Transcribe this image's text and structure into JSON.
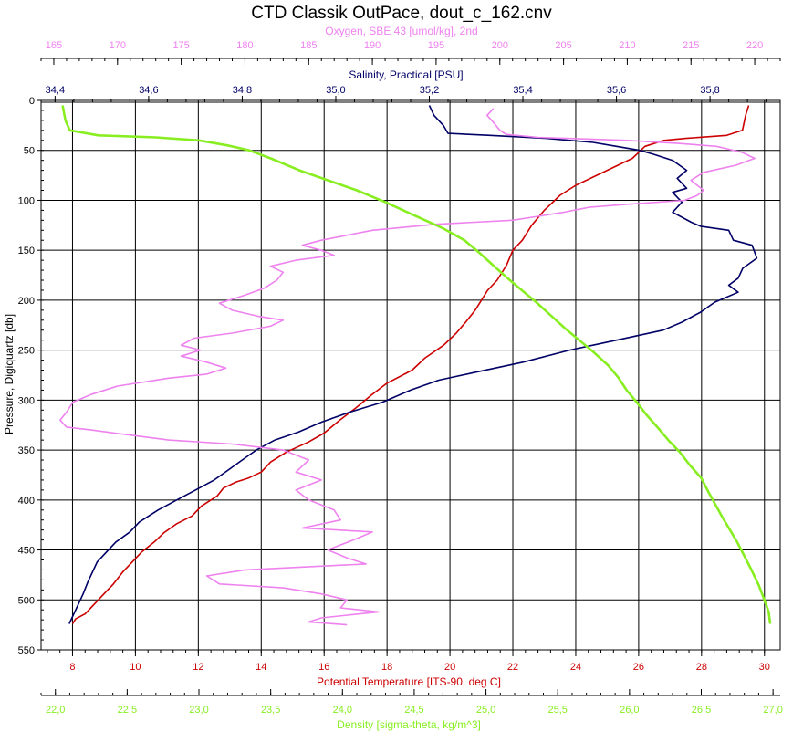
{
  "chart_data": {
    "type": "line",
    "title": "CTD Classik OutPace, dout_c_162.cnv",
    "grid": true,
    "colors": {
      "oxygen": "#ee82ee",
      "salinity": "#000066",
      "temperature": "#cc0000",
      "density": "#88ee22",
      "grid": "#000000"
    },
    "axes": {
      "pressure": {
        "label": "Pressure, Digiquartz [db]",
        "range": [
          0,
          550
        ],
        "inverted": true,
        "ticks": [
          "0",
          "50",
          "100",
          "150",
          "200",
          "250",
          "300",
          "350",
          "400",
          "450",
          "500",
          "550"
        ]
      },
      "oxygen": {
        "label": "Oxygen, SBE 43 [umol/kg], 2nd",
        "range": [
          164,
          222
        ],
        "position": "top",
        "ticks": [
          "165",
          "170",
          "175",
          "180",
          "185",
          "190",
          "195",
          "200",
          "205",
          "210",
          "215",
          "220"
        ]
      },
      "salinity": {
        "label": "Salinity, Practical [PSU]",
        "range": [
          34.37,
          35.95
        ],
        "position": "top",
        "ticks": [
          "34,4",
          "34,6",
          "34,8",
          "35,0",
          "35,2",
          "35,4",
          "35,6",
          "35,8"
        ]
      },
      "temperature": {
        "label": "Potential Temperature [ITS-90, deg C]",
        "range": [
          7,
          30.5
        ],
        "position": "bottom",
        "ticks": [
          "8",
          "10",
          "12",
          "14",
          "16",
          "18",
          "20",
          "22",
          "24",
          "26",
          "28",
          "30"
        ]
      },
      "density": {
        "label": "Density [sigma-theta, kg/m^3]",
        "range": [
          21.9,
          27.05
        ],
        "position": "bottom",
        "ticks": [
          "22,0",
          "22,5",
          "23,0",
          "23,5",
          "24,0",
          "24,5",
          "25,0",
          "25,5",
          "26,0",
          "26,5",
          "27,0"
        ]
      }
    },
    "series": [
      {
        "key": "temperature",
        "name": "Potential Temperature [ITS-90, deg C]",
        "points": [
          [
            29.5,
            5
          ],
          [
            29.4,
            15
          ],
          [
            29.3,
            30
          ],
          [
            28.8,
            35
          ],
          [
            27.5,
            38
          ],
          [
            26.8,
            40
          ],
          [
            26.2,
            46
          ],
          [
            26.0,
            52
          ],
          [
            25.8,
            58
          ],
          [
            25.0,
            70
          ],
          [
            24.0,
            85
          ],
          [
            23.5,
            95
          ],
          [
            23.0,
            110
          ],
          [
            22.6,
            125
          ],
          [
            22.3,
            140
          ],
          [
            22.0,
            150
          ],
          [
            21.8,
            165
          ],
          [
            21.5,
            180
          ],
          [
            21.2,
            190
          ],
          [
            21.0,
            200
          ],
          [
            20.8,
            210
          ],
          [
            20.5,
            222
          ],
          [
            20.2,
            233
          ],
          [
            19.8,
            245
          ],
          [
            19.2,
            258
          ],
          [
            18.8,
            270
          ],
          [
            18.0,
            283
          ],
          [
            17.5,
            295
          ],
          [
            17.0,
            308
          ],
          [
            16.5,
            320
          ],
          [
            16.0,
            333
          ],
          [
            15.5,
            342
          ],
          [
            14.8,
            352
          ],
          [
            14.3,
            362
          ],
          [
            14.0,
            372
          ],
          [
            13.6,
            378
          ],
          [
            13.2,
            382
          ],
          [
            12.8,
            388
          ],
          [
            12.6,
            396
          ],
          [
            12.1,
            406
          ],
          [
            11.8,
            416
          ],
          [
            11.3,
            424
          ],
          [
            10.9,
            433
          ],
          [
            10.6,
            442
          ],
          [
            10.2,
            452
          ],
          [
            9.9,
            462
          ],
          [
            9.6,
            472
          ],
          [
            9.3,
            484
          ],
          [
            9.0,
            494
          ],
          [
            8.7,
            504
          ],
          [
            8.4,
            514
          ],
          [
            8.1,
            519
          ],
          [
            8.0,
            524
          ]
        ]
      },
      {
        "key": "salinity",
        "name": "Salinity, Practical [PSU]",
        "points": [
          [
            35.2,
            5
          ],
          [
            35.21,
            15
          ],
          [
            35.23,
            25
          ],
          [
            35.24,
            33
          ],
          [
            35.33,
            35
          ],
          [
            35.45,
            38
          ],
          [
            35.55,
            42
          ],
          [
            35.6,
            46
          ],
          [
            35.65,
            50
          ],
          [
            35.68,
            54
          ],
          [
            35.72,
            60
          ],
          [
            35.75,
            70
          ],
          [
            35.73,
            78
          ],
          [
            35.75,
            88
          ],
          [
            35.72,
            92
          ],
          [
            35.74,
            102
          ],
          [
            35.72,
            112
          ],
          [
            35.76,
            122
          ],
          [
            35.78,
            126
          ],
          [
            35.84,
            130
          ],
          [
            35.85,
            140
          ],
          [
            35.89,
            145
          ],
          [
            35.9,
            158
          ],
          [
            35.87,
            168
          ],
          [
            35.86,
            178
          ],
          [
            35.84,
            185
          ],
          [
            35.86,
            192
          ],
          [
            35.81,
            202
          ],
          [
            35.78,
            212
          ],
          [
            35.74,
            222
          ],
          [
            35.7,
            230
          ],
          [
            35.6,
            240
          ],
          [
            35.5,
            250
          ],
          [
            35.4,
            262
          ],
          [
            35.3,
            272
          ],
          [
            35.22,
            280
          ],
          [
            35.16,
            290
          ],
          [
            35.1,
            302
          ],
          [
            35.03,
            312
          ],
          [
            34.97,
            322
          ],
          [
            34.92,
            332
          ],
          [
            34.87,
            340
          ],
          [
            34.83,
            350
          ],
          [
            34.8,
            360
          ],
          [
            34.77,
            370
          ],
          [
            34.74,
            380
          ],
          [
            34.7,
            390
          ],
          [
            34.66,
            400
          ],
          [
            34.62,
            410
          ],
          [
            34.58,
            422
          ],
          [
            34.56,
            432
          ],
          [
            34.53,
            442
          ],
          [
            34.51,
            452
          ],
          [
            34.49,
            462
          ],
          [
            34.48,
            472
          ],
          [
            34.47,
            482
          ],
          [
            34.46,
            494
          ],
          [
            34.45,
            504
          ],
          [
            34.44,
            514
          ],
          [
            34.43,
            524
          ]
        ]
      },
      {
        "key": "oxygen",
        "name": "Oxygen, SBE 43 [umol/kg], 2nd",
        "points": [
          [
            199.5,
            8
          ],
          [
            199.0,
            15
          ],
          [
            199.5,
            22
          ],
          [
            200.0,
            30
          ],
          [
            200.5,
            34
          ],
          [
            203.0,
            37
          ],
          [
            210.0,
            40
          ],
          [
            214.0,
            43
          ],
          [
            217.0,
            46
          ],
          [
            219.0,
            52
          ],
          [
            220.0,
            58
          ],
          [
            218.5,
            65
          ],
          [
            216.0,
            72
          ],
          [
            215.0,
            80
          ],
          [
            216.0,
            90
          ],
          [
            215.5,
            95
          ],
          [
            214.5,
            100
          ],
          [
            210.0,
            104
          ],
          [
            207.0,
            107
          ],
          [
            205.0,
            112
          ],
          [
            203.0,
            116
          ],
          [
            201.0,
            120
          ],
          [
            195.0,
            124
          ],
          [
            190.0,
            130
          ],
          [
            186.0,
            140
          ],
          [
            184.5,
            145
          ],
          [
            186.0,
            150
          ],
          [
            187.0,
            155
          ],
          [
            184.0,
            160
          ],
          [
            182.0,
            166
          ],
          [
            183.0,
            172
          ],
          [
            182.5,
            180
          ],
          [
            181.5,
            188
          ],
          [
            180.0,
            195
          ],
          [
            178.0,
            203
          ],
          [
            179.0,
            210
          ],
          [
            181.0,
            216
          ],
          [
            183.0,
            220
          ],
          [
            182.0,
            226
          ],
          [
            179.0,
            233
          ],
          [
            176.0,
            238
          ],
          [
            175.0,
            245
          ],
          [
            176.5,
            250
          ],
          [
            175.0,
            256
          ],
          [
            177.0,
            262
          ],
          [
            178.5,
            268
          ],
          [
            177.0,
            274
          ],
          [
            174.0,
            278
          ],
          [
            170.0,
            286
          ],
          [
            168.0,
            294
          ],
          [
            166.5,
            302
          ],
          [
            166.0,
            312
          ],
          [
            165.5,
            320
          ],
          [
            166.0,
            327
          ],
          [
            168.0,
            330
          ],
          [
            171.0,
            335
          ],
          [
            174.0,
            340
          ],
          [
            179.0,
            344
          ],
          [
            183.0,
            350
          ],
          [
            185.0,
            360
          ],
          [
            184.0,
            372
          ],
          [
            186.0,
            380
          ],
          [
            184.0,
            390
          ],
          [
            185.0,
            400
          ],
          [
            187.0,
            410
          ],
          [
            187.5,
            420
          ],
          [
            184.5,
            428
          ],
          [
            190.0,
            432
          ],
          [
            188.5,
            440
          ],
          [
            186.5,
            450
          ],
          [
            188.0,
            458
          ],
          [
            189.5,
            464
          ],
          [
            180.0,
            470
          ],
          [
            177.0,
            476
          ],
          [
            178.0,
            484
          ],
          [
            183.0,
            488
          ],
          [
            186.0,
            494
          ],
          [
            188.0,
            500
          ],
          [
            187.5,
            508
          ],
          [
            190.5,
            512
          ],
          [
            186.0,
            518
          ],
          [
            185.0,
            522
          ],
          [
            188.0,
            525
          ]
        ]
      },
      {
        "key": "density",
        "name": "Density [sigma-theta, kg/m^3]",
        "points": [
          [
            22.05,
            5
          ],
          [
            22.07,
            20
          ],
          [
            22.1,
            30
          ],
          [
            22.3,
            35
          ],
          [
            22.7,
            37
          ],
          [
            23.0,
            40
          ],
          [
            23.2,
            45
          ],
          [
            23.35,
            50
          ],
          [
            23.5,
            58
          ],
          [
            23.7,
            70
          ],
          [
            23.9,
            80
          ],
          [
            24.1,
            90
          ],
          [
            24.3,
            102
          ],
          [
            24.5,
            115
          ],
          [
            24.7,
            128
          ],
          [
            24.85,
            140
          ],
          [
            24.95,
            152
          ],
          [
            25.05,
            165
          ],
          [
            25.15,
            178
          ],
          [
            25.25,
            190
          ],
          [
            25.35,
            202
          ],
          [
            25.45,
            215
          ],
          [
            25.55,
            228
          ],
          [
            25.65,
            240
          ],
          [
            25.75,
            252
          ],
          [
            25.85,
            265
          ],
          [
            25.92,
            277
          ],
          [
            25.98,
            290
          ],
          [
            26.05,
            302
          ],
          [
            26.12,
            315
          ],
          [
            26.2,
            328
          ],
          [
            26.27,
            340
          ],
          [
            26.35,
            352
          ],
          [
            26.42,
            365
          ],
          [
            26.5,
            378
          ],
          [
            26.55,
            392
          ],
          [
            26.6,
            405
          ],
          [
            26.65,
            418
          ],
          [
            26.7,
            430
          ],
          [
            26.75,
            442
          ],
          [
            26.8,
            456
          ],
          [
            26.85,
            470
          ],
          [
            26.9,
            485
          ],
          [
            26.94,
            500
          ],
          [
            26.97,
            512
          ],
          [
            26.98,
            524
          ]
        ]
      }
    ]
  }
}
